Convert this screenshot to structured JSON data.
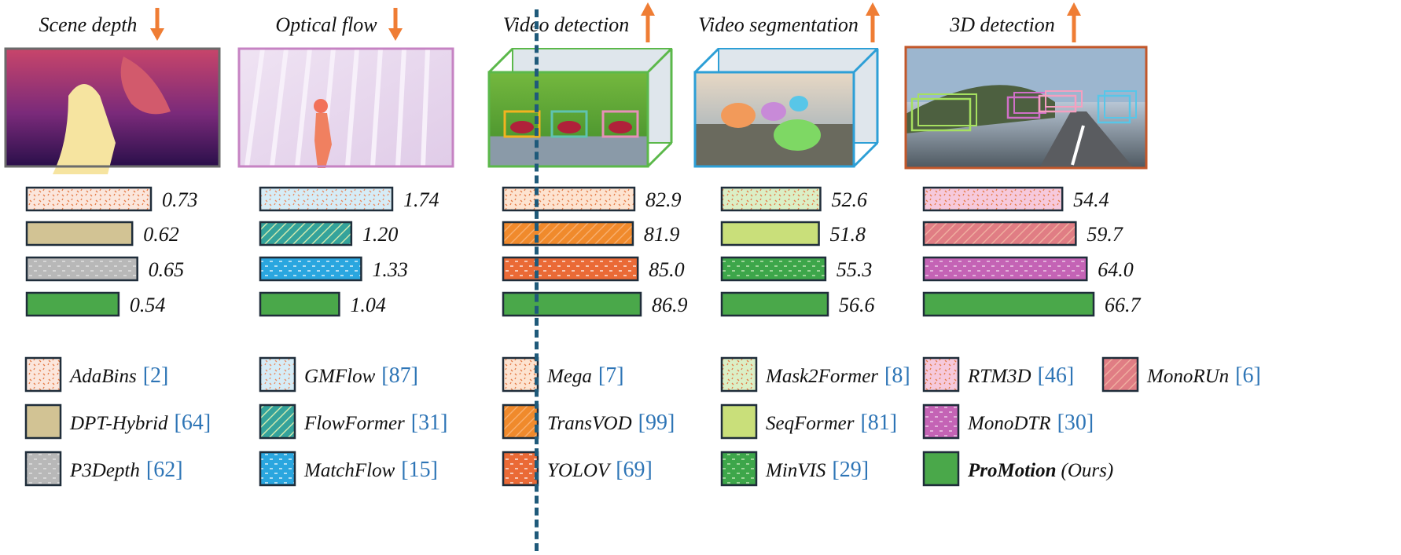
{
  "colors": {
    "arrow": "#ef7d34",
    "outline": "#1f2d3a",
    "ref": "#2e75b6",
    "ours_fill": "#4aa84a"
  },
  "tasks": [
    {
      "title": "Scene depth",
      "arrow": "down",
      "thumbnail": "depth-map",
      "frame_color": "#6b6b6b",
      "legend_entries": [
        {
          "name": "AdaBins",
          "ref": "[2]",
          "fill": "#fbe6dc",
          "pattern": "dots",
          "pattern_color": "#e47b47"
        },
        {
          "name": "DPT-Hybrid",
          "ref": "[64]",
          "fill": "#d2c394",
          "pattern": "none",
          "pattern_color": ""
        },
        {
          "name": "P3Depth",
          "ref": "[62]",
          "fill": "#b8b8b8",
          "pattern": "dashes",
          "pattern_color": "#e8e8e8"
        }
      ]
    },
    {
      "title": "Optical flow",
      "arrow": "down",
      "thumbnail": "flow-map",
      "frame_color": "#c683c3",
      "legend_entries": [
        {
          "name": "GMFlow",
          "ref": "[87]",
          "fill": "#d6ecf6",
          "pattern": "dots",
          "pattern_color": "#e88a60"
        },
        {
          "name": "FlowFormer",
          "ref": "[31]",
          "fill": "#35a39b",
          "pattern": "diag",
          "pattern_color": "#d7ecb0"
        },
        {
          "name": "MatchFlow",
          "ref": "[15]",
          "fill": "#2aa6df",
          "pattern": "dashes",
          "pattern_color": "#ffffff"
        }
      ]
    },
    {
      "title": "Video detection",
      "arrow": "up",
      "thumbnail": "video-detection",
      "frame_color": "#5bb84a",
      "legend_entries": [
        {
          "name": "Mega",
          "ref": "[7]",
          "fill": "#fde3d0",
          "pattern": "dots",
          "pattern_color": "#e47b47"
        },
        {
          "name": "TransVOD",
          "ref": "[99]",
          "fill": "#f08a2c",
          "pattern": "diag",
          "pattern_color": "#f8b070"
        },
        {
          "name": "YOLOV",
          "ref": "[69]",
          "fill": "#ea6a36",
          "pattern": "dashes",
          "pattern_color": "#ffffff"
        }
      ]
    },
    {
      "title": "Video segmentation",
      "arrow": "up",
      "thumbnail": "video-segmentation",
      "frame_color": "#2d9fd6",
      "legend_entries": [
        {
          "name": "Mask2Former",
          "ref": "[8]",
          "fill": "#dbefc6",
          "pattern": "dots",
          "pattern_color": "#e47b47"
        },
        {
          "name": "SeqFormer",
          "ref": "[81]",
          "fill": "#c9df7a",
          "pattern": "none",
          "pattern_color": ""
        },
        {
          "name": "MinVIS",
          "ref": "[29]",
          "fill": "#3da64a",
          "pattern": "dashes",
          "pattern_color": "#d8f0c8"
        }
      ]
    },
    {
      "title": "3D detection",
      "arrow": "up",
      "thumbnail": "3d-detection",
      "frame_color": "#c2572a",
      "legend_entries": [
        {
          "name": "RTM3D",
          "ref": "[46]",
          "fill": "#f6c9dc",
          "pattern": "dots",
          "pattern_color": "#e47b47"
        },
        {
          "name": "MonoRUn",
          "ref": "[6]",
          "fill": "#e07d84",
          "pattern": "diag",
          "pattern_color": "#f0b0a0"
        },
        {
          "name": "MonoDTR",
          "ref": "[30]",
          "fill": "#c463b5",
          "pattern": "dashes",
          "pattern_color": "#f4e0f0"
        }
      ]
    }
  ],
  "ours_legend": {
    "name": "ProMotion",
    "suffix": "(Ours)"
  },
  "chart_data": [
    {
      "type": "bar",
      "orientation": "horizontal",
      "title": "Scene depth",
      "better": "lower",
      "categories": [
        "AdaBins",
        "DPT-Hybrid",
        "P3Depth",
        "ProMotion"
      ],
      "values": [
        0.73,
        0.62,
        0.65,
        0.54
      ],
      "labels": [
        "0.73",
        "0.62",
        "0.65",
        "0.54"
      ]
    },
    {
      "type": "bar",
      "orientation": "horizontal",
      "title": "Optical flow",
      "better": "lower",
      "categories": [
        "GMFlow",
        "FlowFormer",
        "MatchFlow",
        "ProMotion"
      ],
      "values": [
        1.74,
        1.2,
        1.33,
        1.04
      ],
      "labels": [
        "1.74",
        "1.20",
        "1.33",
        "1.04"
      ]
    },
    {
      "type": "bar",
      "orientation": "horizontal",
      "title": "Video detection",
      "better": "higher",
      "categories": [
        "Mega",
        "TransVOD",
        "YOLOV",
        "ProMotion"
      ],
      "values": [
        82.9,
        81.9,
        85.0,
        86.9
      ],
      "labels": [
        "82.9",
        "81.9",
        "85.0",
        "86.9"
      ]
    },
    {
      "type": "bar",
      "orientation": "horizontal",
      "title": "Video segmentation",
      "better": "higher",
      "categories": [
        "Mask2Former",
        "SeqFormer",
        "MinVIS",
        "ProMotion"
      ],
      "values": [
        52.6,
        51.8,
        55.3,
        56.6
      ],
      "labels": [
        "52.6",
        "51.8",
        "55.3",
        "56.6"
      ]
    },
    {
      "type": "bar",
      "orientation": "horizontal",
      "title": "3D detection",
      "better": "higher",
      "categories": [
        "RTM3D",
        "MonoRUn",
        "MonoDTR",
        "ProMotion"
      ],
      "values": [
        54.4,
        59.7,
        64.0,
        66.7
      ],
      "labels": [
        "54.4",
        "59.7",
        "64.0",
        "66.7"
      ]
    }
  ]
}
